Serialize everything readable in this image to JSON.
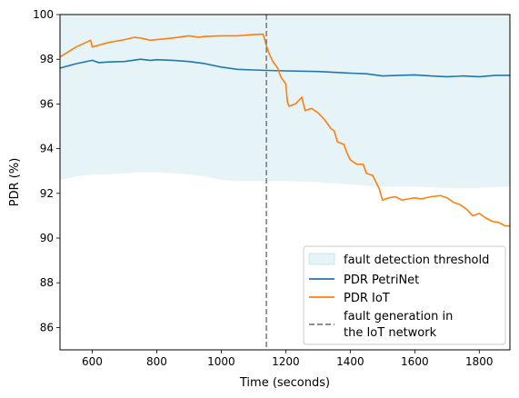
{
  "chart_data": {
    "type": "line",
    "xlabel": "Time (seconds)",
    "ylabel": "PDR (%)",
    "xlim": [
      500,
      1895
    ],
    "ylim": [
      85,
      100
    ],
    "x_ticks": [
      600,
      800,
      1000,
      1200,
      1400,
      1600,
      1800
    ],
    "y_ticks": [
      86,
      88,
      90,
      92,
      94,
      96,
      98,
      100
    ],
    "grid": false,
    "legend_position": "bottom-right",
    "fault_line": {
      "x": 1140,
      "style": "dashed",
      "color": "#7f7f7f",
      "label_line1": "fault generation in",
      "label_line2": "the IoT network"
    },
    "threshold_band": {
      "name": "fault detection threshold",
      "color": "#add8e6",
      "opacity": 0.3,
      "upper": 100,
      "lower": [
        [
          500,
          92.6
        ],
        [
          550,
          92.75
        ],
        [
          600,
          92.85
        ],
        [
          650,
          92.85
        ],
        [
          700,
          92.9
        ],
        [
          750,
          92.95
        ],
        [
          800,
          92.95
        ],
        [
          850,
          92.9
        ],
        [
          900,
          92.85
        ],
        [
          950,
          92.75
        ],
        [
          1000,
          92.6
        ],
        [
          1050,
          92.55
        ],
        [
          1100,
          92.55
        ],
        [
          1140,
          92.55
        ],
        [
          1200,
          92.55
        ],
        [
          1300,
          92.5
        ],
        [
          1400,
          92.4
        ],
        [
          1500,
          92.3
        ],
        [
          1600,
          92.3
        ],
        [
          1700,
          92.25
        ],
        [
          1800,
          92.25
        ],
        [
          1895,
          92.3
        ]
      ]
    },
    "series": [
      {
        "name": "PDR PetriNet",
        "color": "#1f77b4",
        "points": [
          [
            500,
            97.6
          ],
          [
            550,
            97.8
          ],
          [
            600,
            97.95
          ],
          [
            620,
            97.85
          ],
          [
            650,
            97.88
          ],
          [
            700,
            97.9
          ],
          [
            750,
            98.0
          ],
          [
            780,
            97.95
          ],
          [
            800,
            97.98
          ],
          [
            850,
            97.95
          ],
          [
            900,
            97.9
          ],
          [
            950,
            97.8
          ],
          [
            1000,
            97.65
          ],
          [
            1050,
            97.55
          ],
          [
            1100,
            97.52
          ],
          [
            1140,
            97.5
          ],
          [
            1200,
            97.48
          ],
          [
            1300,
            97.45
          ],
          [
            1400,
            97.38
          ],
          [
            1450,
            97.35
          ],
          [
            1500,
            97.25
          ],
          [
            1550,
            97.28
          ],
          [
            1600,
            97.3
          ],
          [
            1650,
            97.25
          ],
          [
            1700,
            97.22
          ],
          [
            1750,
            97.25
          ],
          [
            1800,
            97.22
          ],
          [
            1850,
            97.28
          ],
          [
            1895,
            97.28
          ]
        ]
      },
      {
        "name": "PDR IoT",
        "color": "#ff7f0e",
        "points": [
          [
            500,
            98.1
          ],
          [
            550,
            98.55
          ],
          [
            595,
            98.85
          ],
          [
            600,
            98.55
          ],
          [
            650,
            98.75
          ],
          [
            700,
            98.88
          ],
          [
            730,
            98.98
          ],
          [
            750,
            98.95
          ],
          [
            780,
            98.85
          ],
          [
            800,
            98.88
          ],
          [
            850,
            98.95
          ],
          [
            900,
            99.05
          ],
          [
            930,
            98.98
          ],
          [
            950,
            99.02
          ],
          [
            1000,
            99.05
          ],
          [
            1050,
            99.05
          ],
          [
            1100,
            99.1
          ],
          [
            1130,
            99.12
          ],
          [
            1140,
            98.6
          ],
          [
            1150,
            98.2
          ],
          [
            1160,
            97.9
          ],
          [
            1175,
            97.6
          ],
          [
            1185,
            97.2
          ],
          [
            1200,
            96.9
          ],
          [
            1205,
            96.1
          ],
          [
            1210,
            95.9
          ],
          [
            1230,
            96.0
          ],
          [
            1250,
            96.3
          ],
          [
            1260,
            95.7
          ],
          [
            1280,
            95.8
          ],
          [
            1300,
            95.6
          ],
          [
            1320,
            95.3
          ],
          [
            1340,
            94.9
          ],
          [
            1350,
            94.8
          ],
          [
            1360,
            94.3
          ],
          [
            1380,
            94.2
          ],
          [
            1390,
            93.8
          ],
          [
            1400,
            93.5
          ],
          [
            1420,
            93.3
          ],
          [
            1440,
            93.3
          ],
          [
            1450,
            92.9
          ],
          [
            1470,
            92.8
          ],
          [
            1480,
            92.5
          ],
          [
            1490,
            92.2
          ],
          [
            1500,
            91.7
          ],
          [
            1520,
            91.8
          ],
          [
            1540,
            91.85
          ],
          [
            1560,
            91.7
          ],
          [
            1580,
            91.75
          ],
          [
            1600,
            91.8
          ],
          [
            1620,
            91.75
          ],
          [
            1650,
            91.85
          ],
          [
            1680,
            91.9
          ],
          [
            1700,
            91.8
          ],
          [
            1720,
            91.6
          ],
          [
            1740,
            91.5
          ],
          [
            1760,
            91.3
          ],
          [
            1780,
            91.0
          ],
          [
            1800,
            91.1
          ],
          [
            1820,
            90.9
          ],
          [
            1840,
            90.75
          ],
          [
            1860,
            90.7
          ],
          [
            1880,
            90.55
          ],
          [
            1895,
            90.55
          ]
        ]
      }
    ]
  }
}
